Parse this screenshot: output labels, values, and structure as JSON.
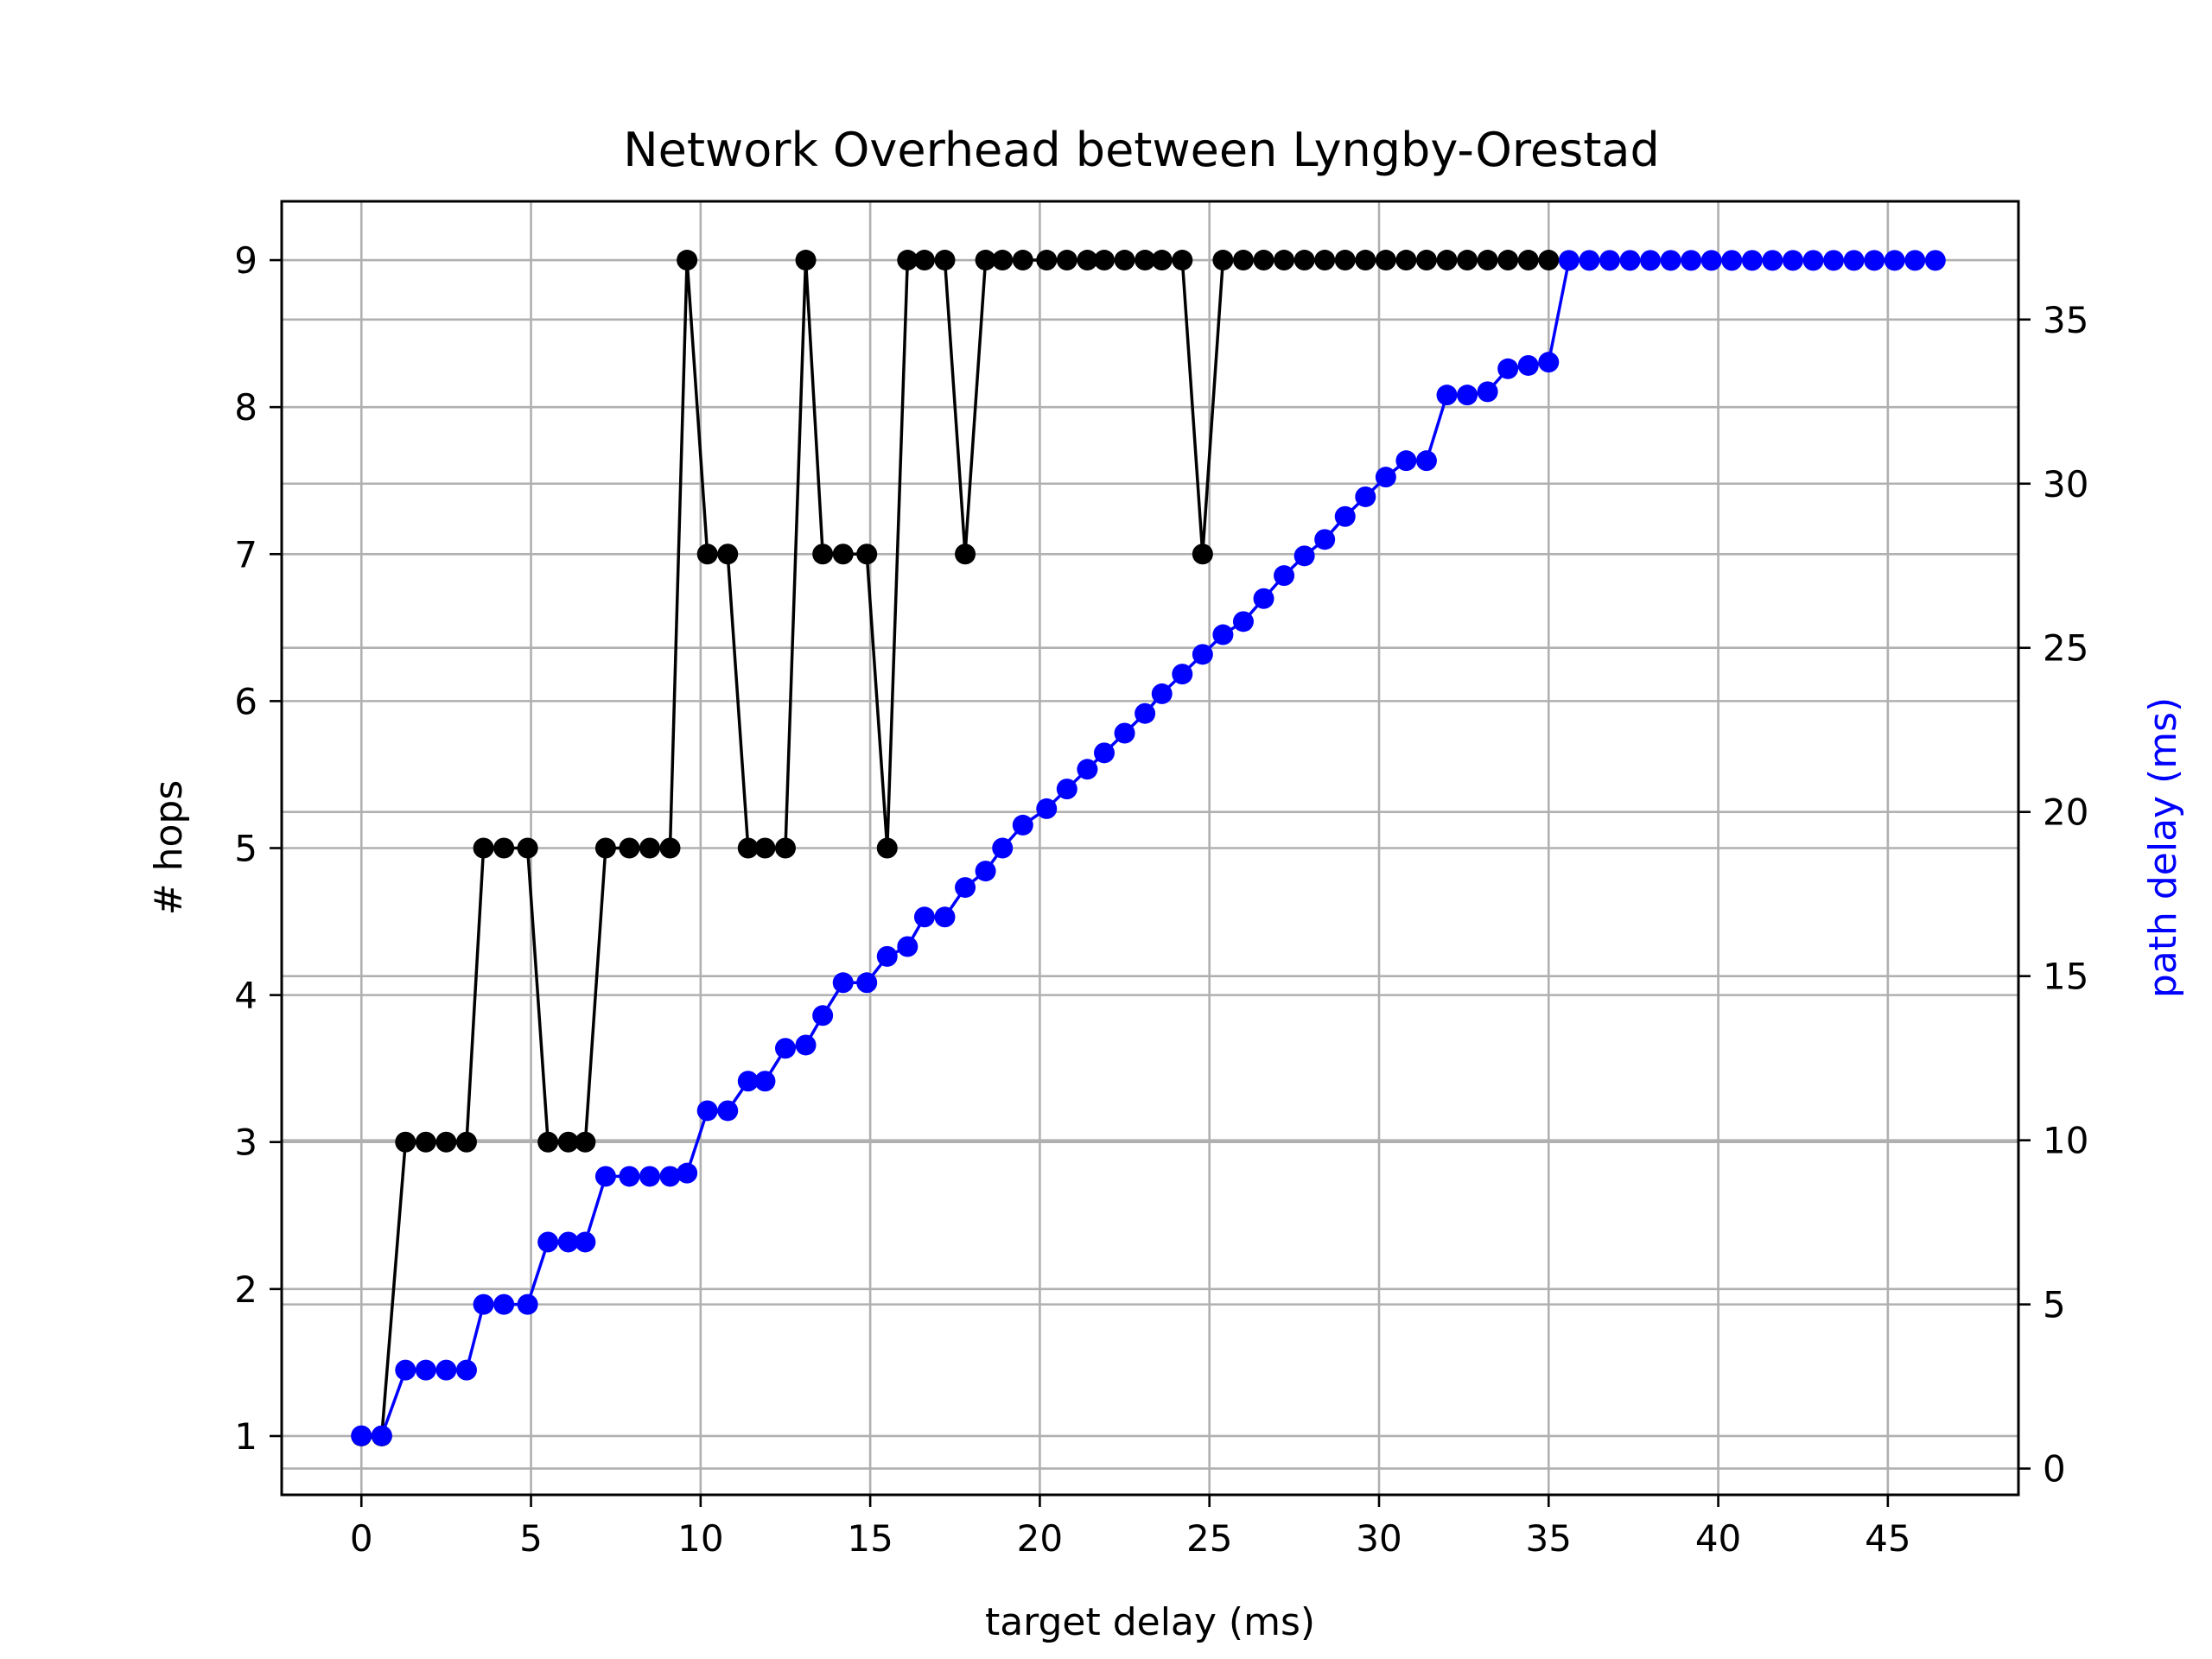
{
  "chart_data": {
    "type": "line",
    "title": "Network Overhead between Lyngby-Orestad",
    "xlabel": "target delay (ms)",
    "ylabel": "# hops",
    "ylabel_right": "path delay (ms)",
    "xlim": [
      -2.35,
      48.85
    ],
    "ylim": [
      0.6,
      9.4
    ],
    "ylim_right": [
      -0.8,
      38.6
    ],
    "x_ticks": [
      "0",
      "5",
      "10",
      "15",
      "20",
      "25",
      "30",
      "35",
      "40",
      "45"
    ],
    "y_ticks": [
      "1",
      "2",
      "3",
      "4",
      "5",
      "6",
      "7",
      "8",
      "9"
    ],
    "y_right_ticks": [
      "0",
      "5",
      "10",
      "15",
      "20",
      "25",
      "30",
      "35"
    ],
    "grid": true,
    "grid_right": true,
    "colors": {
      "hops": "#000000",
      "delay": "#0000ff",
      "grid": "#b0b0b0"
    },
    "series": [
      {
        "axis": "left",
        "color": "#000000",
        "x": [
          0,
          0.6,
          1.3,
          1.9,
          2.5,
          3.1,
          3.6,
          4.2,
          4.9,
          5.5,
          6.1,
          6.6,
          7.2,
          7.9,
          8.5,
          9.1,
          9.6,
          10.2,
          10.8,
          11.4,
          11.9,
          12.5,
          13.1,
          13.6,
          14.2,
          14.9,
          15.5,
          16.1,
          16.6,
          17.2,
          17.8,
          18.4,
          18.9,
          19.5,
          20.2,
          20.8,
          21.4,
          21.9,
          22.5,
          23.1,
          23.6,
          24.2,
          24.8,
          25.4,
          26.0,
          26.6,
          27.2,
          27.8,
          28.4,
          29.0,
          29.6,
          30.2,
          30.8,
          31.4,
          32.0,
          32.6,
          33.2,
          33.8,
          34.4,
          35.0
        ],
        "values": [
          1,
          1,
          3,
          3,
          3,
          3,
          5,
          5,
          5,
          3,
          3,
          3,
          5,
          5,
          5,
          5,
          9,
          7,
          7,
          5,
          5,
          5,
          9,
          7,
          7,
          7,
          5,
          9,
          9,
          9,
          7,
          9,
          9,
          9,
          9,
          9,
          9,
          9,
          9,
          9,
          9,
          9,
          7,
          9,
          9,
          9,
          9,
          9,
          9,
          9,
          9,
          9,
          9,
          9,
          9,
          9,
          9,
          9,
          9,
          9
        ]
      },
      {
        "axis": "right",
        "color": "#0000ff",
        "x": [
          0,
          0.6,
          1.3,
          1.9,
          2.5,
          3.1,
          3.6,
          4.2,
          4.9,
          5.5,
          6.1,
          6.6,
          7.2,
          7.9,
          8.5,
          9.1,
          9.6,
          10.2,
          10.8,
          11.4,
          11.9,
          12.5,
          13.1,
          13.6,
          14.2,
          14.9,
          15.5,
          16.1,
          16.6,
          17.2,
          17.8,
          18.4,
          18.9,
          19.5,
          20.2,
          20.8,
          21.4,
          21.9,
          22.5,
          23.1,
          23.6,
          24.2,
          24.8,
          25.4,
          26.0,
          26.6,
          27.2,
          27.8,
          28.4,
          29.0,
          29.6,
          30.2,
          30.8,
          31.4,
          32.0,
          32.6,
          33.2,
          33.8,
          34.4,
          35.0,
          35.6,
          36.2,
          36.8,
          37.4,
          38.0,
          38.6,
          39.2,
          39.8,
          40.4,
          41.0,
          41.6,
          42.2,
          42.8,
          43.4,
          44.0,
          44.6,
          45.2,
          45.8,
          46.4
        ],
        "values": [
          1.0,
          1.0,
          3.0,
          3.0,
          3.0,
          3.0,
          5.0,
          5.0,
          5.0,
          6.9,
          6.9,
          6.9,
          8.9,
          8.9,
          8.9,
          8.9,
          9.0,
          10.9,
          10.9,
          11.8,
          11.8,
          12.8,
          12.9,
          13.8,
          14.8,
          14.8,
          15.6,
          15.9,
          16.8,
          16.8,
          17.7,
          18.2,
          18.9,
          19.6,
          20.1,
          20.7,
          21.3,
          21.8,
          22.4,
          23.0,
          23.6,
          24.2,
          24.8,
          25.4,
          25.8,
          26.5,
          27.2,
          27.8,
          28.3,
          29.0,
          29.6,
          30.2,
          30.7,
          30.7,
          32.7,
          32.7,
          32.8,
          33.5,
          33.6,
          33.7,
          36.8,
          36.8,
          36.8,
          36.8,
          36.8,
          36.8,
          36.8,
          36.8,
          36.8,
          36.8,
          36.8,
          36.8,
          36.8,
          36.8,
          36.8,
          36.8,
          36.8,
          36.8,
          36.8
        ]
      }
    ]
  }
}
